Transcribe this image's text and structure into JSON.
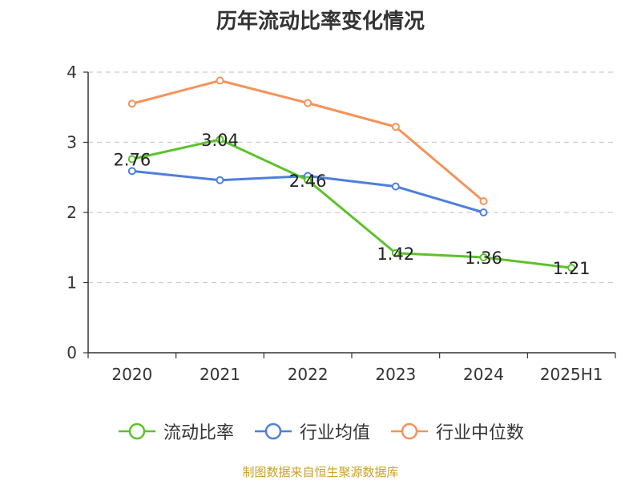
{
  "chart_data": {
    "type": "line",
    "title": "历年流动比率变化情况",
    "categories": [
      "2020",
      "2021",
      "2022",
      "2023",
      "2024",
      "2025H1"
    ],
    "ylim": [
      0,
      4
    ],
    "yticks": [
      "0",
      "1",
      "2",
      "3",
      "4"
    ],
    "grid": true,
    "legend_position": "bottom",
    "series": [
      {
        "name": "流动比率",
        "color": "#5cc22b",
        "values": [
          2.76,
          3.04,
          2.46,
          1.42,
          1.36,
          1.21
        ],
        "labels": [
          "2.76",
          "3.04",
          "2.46",
          "1.42",
          "1.36",
          "1.21"
        ]
      },
      {
        "name": "行业均值",
        "color": "#4f7fdc",
        "values": [
          2.59,
          2.46,
          2.52,
          2.37,
          2.0,
          null
        ]
      },
      {
        "name": "行业中位数",
        "color": "#f5935a",
        "values": [
          3.55,
          3.88,
          3.56,
          3.22,
          2.16,
          null
        ]
      }
    ]
  },
  "footer": {
    "source": "制图数据来自恒生聚源数据库"
  }
}
